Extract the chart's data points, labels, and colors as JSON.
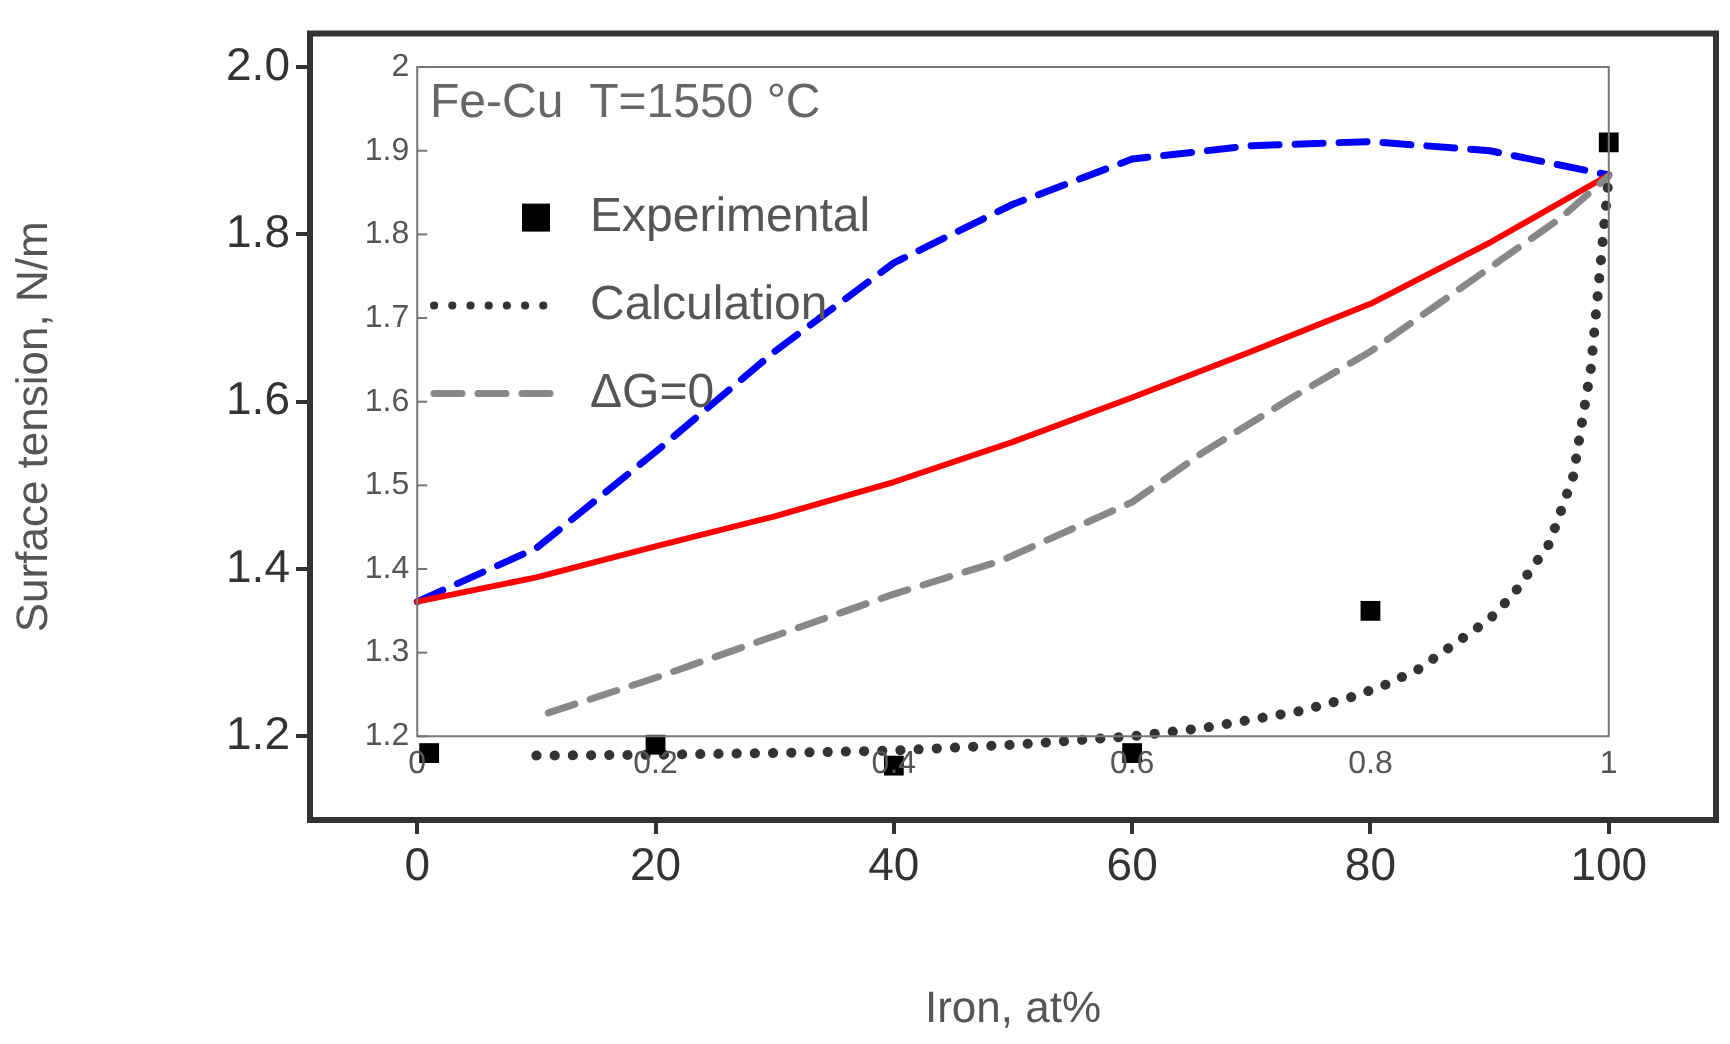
{
  "chart_data": {
    "type": "line",
    "title": "Fe-Cu  T=1550 °C",
    "xlabel": "Iron, at%",
    "ylabel": "Surface tension, N/m",
    "xlim": [
      -9,
      109
    ],
    "xticks": [
      0,
      20,
      40,
      60,
      80,
      100
    ],
    "ylim": [
      1.1,
      2.04
    ],
    "yticks": [
      1.2,
      1.4,
      1.6,
      1.8,
      {
        "value": 2,
        "label": "2.0"
      }
    ],
    "x2lim": [
      -0.09,
      1.09
    ],
    "x2ticks": [
      0,
      0.2,
      0.4,
      0.6,
      0.8,
      1
    ],
    "y2lim": [
      1.1,
      2.04
    ],
    "y2ticks": [
      1.2,
      1.3,
      1.4,
      1.5,
      1.6,
      1.7,
      1.8,
      1.9,
      2
    ],
    "grid": false,
    "legend": "top left",
    "series": [
      {
        "name": "Experimental",
        "type": "scatter",
        "marker": "square",
        "color": "#000000",
        "x": [
          1,
          20,
          40,
          60,
          80,
          100
        ],
        "values": [
          1.18,
          1.19,
          1.165,
          1.18,
          1.35,
          1.91
        ]
      },
      {
        "name": "Calculation",
        "line_style": "dotted",
        "marker": "none",
        "color": "#333333",
        "x": [
          10,
          20,
          30,
          40,
          50,
          60,
          66,
          70,
          74,
          78,
          81,
          84,
          86,
          88,
          90,
          92,
          93.5,
          95,
          97,
          98.5,
          100
        ],
        "values": [
          1.177,
          1.178,
          1.18,
          1.183,
          1.19,
          1.2,
          1.21,
          1.22,
          1.23,
          1.245,
          1.26,
          1.28,
          1.3,
          1.32,
          1.34,
          1.37,
          1.4,
          1.43,
          1.51,
          1.64,
          1.87
        ]
      },
      {
        "name": "ΔG=0",
        "line_style": "dashed",
        "marker": "none",
        "color": "#888888",
        "x": [
          11,
          20,
          30,
          40,
          49,
          60,
          66,
          74,
          80,
          86,
          91,
          96,
          100
        ],
        "values": [
          1.228,
          1.27,
          1.32,
          1.37,
          1.41,
          1.48,
          1.54,
          1.61,
          1.66,
          1.72,
          1.77,
          1.82,
          1.87
        ]
      },
      {
        "line_style": "solid",
        "marker": "none",
        "color": "#ff0000",
        "x": [
          0,
          10,
          20,
          30,
          40,
          50,
          60,
          70,
          80,
          90,
          100
        ],
        "values": [
          1.361,
          1.39,
          1.427,
          1.463,
          1.504,
          1.552,
          1.605,
          1.66,
          1.717,
          1.79,
          1.871
        ]
      },
      {
        "line_style": "dashed",
        "marker": "none",
        "color": "#0000ff",
        "x": [
          0,
          10,
          20,
          30,
          40,
          50,
          60,
          70,
          80,
          90,
          100
        ],
        "values": [
          1.361,
          1.425,
          1.54,
          1.66,
          1.766,
          1.836,
          1.89,
          1.906,
          1.911,
          1.9,
          1.871
        ]
      }
    ]
  }
}
